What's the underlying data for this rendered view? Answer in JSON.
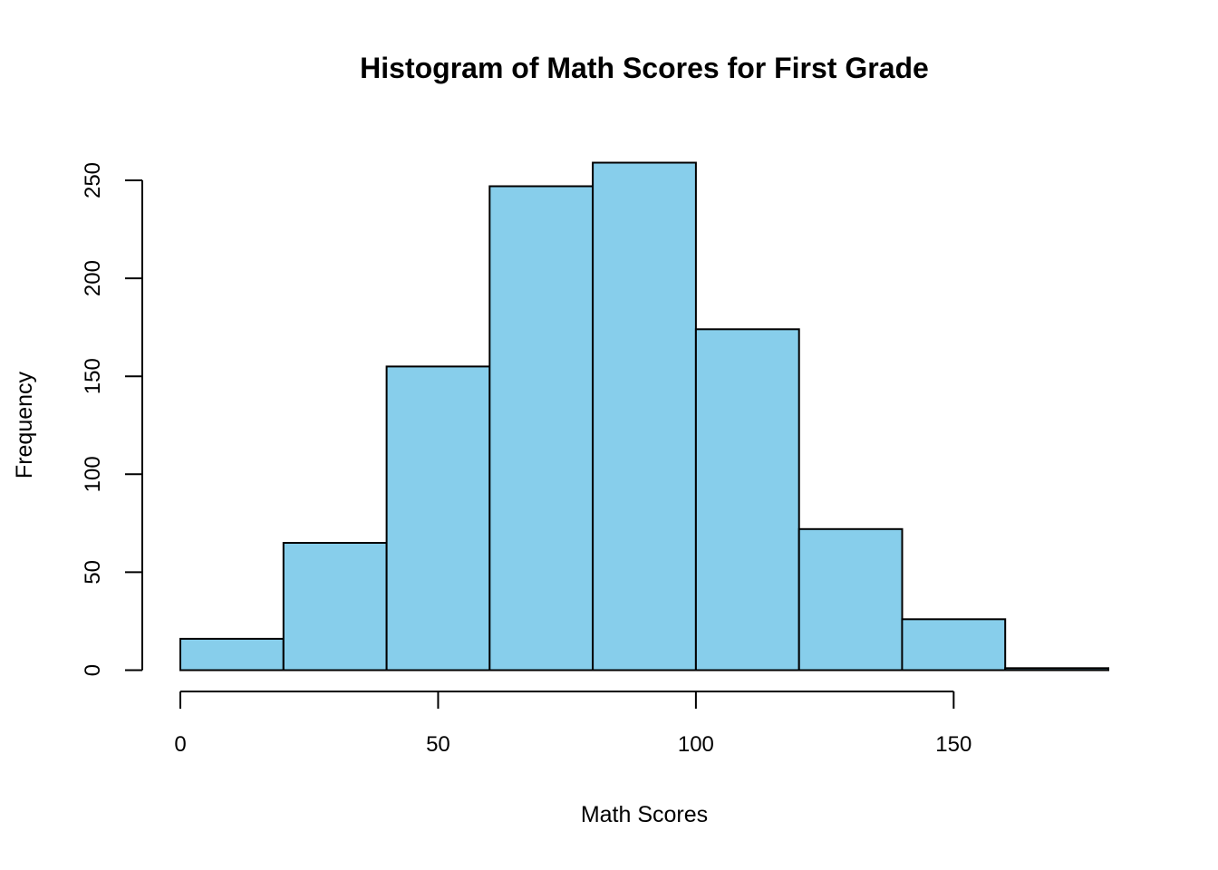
{
  "chart_data": {
    "type": "bar",
    "subtype": "histogram",
    "title": "Histogram of Math Scores for First Grade",
    "xlabel": "Math Scores",
    "ylabel": "Frequency",
    "bin_edges": [
      0,
      20,
      40,
      60,
      80,
      100,
      120,
      140,
      160,
      180
    ],
    "bin_labels": [
      "0-20",
      "20-40",
      "40-60",
      "60-80",
      "80-100",
      "100-120",
      "120-140",
      "140-160",
      "160-180"
    ],
    "values": [
      16,
      65,
      155,
      247,
      259,
      174,
      72,
      26,
      1
    ],
    "x_ticks": [
      0,
      50,
      100,
      150
    ],
    "x_tick_labels": [
      "0",
      "50",
      "100",
      "150"
    ],
    "y_ticks": [
      0,
      50,
      100,
      150,
      200,
      250
    ],
    "y_tick_labels": [
      "0",
      "50",
      "100",
      "150",
      "200",
      "250"
    ],
    "xlim": [
      0,
      180
    ],
    "ylim": [
      0,
      250
    ],
    "grid": "off",
    "legend": "none",
    "colors": {
      "bar_fill": "#87CEEB",
      "bar_stroke": "#000000",
      "axis": "#000000",
      "background": "#FFFFFF",
      "text": "#000000"
    }
  }
}
